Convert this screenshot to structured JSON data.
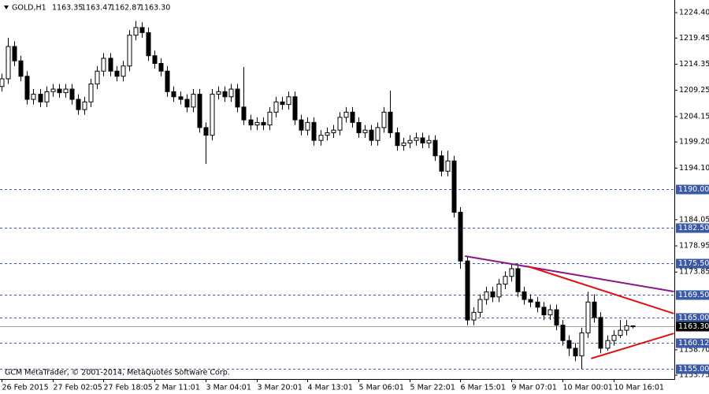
{
  "chart_data": {
    "type": "candlestick",
    "symbol": "GOLD,H1",
    "ohlc_labels": [
      "1163.35",
      "1163.47",
      "1162.87",
      "1163.30"
    ],
    "footer": "GCM MetaTrader, © 2001-2014, MetaQuotes Software Corp.",
    "categories": [
      "26 Feb 2015",
      null,
      null,
      null,
      null,
      null,
      null,
      null,
      "27 Feb 02:05",
      null,
      null,
      null,
      null,
      null,
      null,
      null,
      "27 Feb 18:05",
      null,
      null,
      null,
      null,
      null,
      null,
      null,
      "2 Mar 11:01",
      null,
      null,
      null,
      null,
      null,
      null,
      null,
      "3 Mar 04:01",
      null,
      null,
      null,
      null,
      null,
      null,
      null,
      "3 Mar 20:01",
      null,
      null,
      null,
      null,
      null,
      null,
      null,
      "4 Mar 13:01",
      null,
      null,
      null,
      null,
      null,
      null,
      null,
      "5 Mar 06:01",
      null,
      null,
      null,
      null,
      null,
      null,
      null,
      "5 Mar 22:01",
      null,
      null,
      null,
      null,
      null,
      null,
      null,
      "6 Mar 15:01",
      null,
      null,
      null,
      null,
      null,
      null,
      null,
      "9 Mar 07:01",
      null,
      null,
      null,
      null,
      null,
      null,
      null,
      "10 Mar 00:01",
      null,
      null,
      null,
      null,
      null,
      null,
      null,
      "10 Mar 16:01",
      null,
      null,
      null
    ],
    "open": [
      1210,
      1211.5,
      1217.8,
      1215,
      1212,
      1207.5,
      1208.5,
      1207,
      1209,
      1209.5,
      1208.8,
      1209.5,
      1207.5,
      1205.5,
      1207,
      1210.5,
      1213,
      1215.5,
      1213,
      1212,
      1214,
      1220,
      1221.5,
      1220.5,
      1216,
      1214.5,
      1213,
      1209,
      1208,
      1207.5,
      1206,
      1208.5,
      1202,
      1200.5,
      1208.5,
      1209,
      1208,
      1209.5,
      1206,
      1203.5,
      1202.5,
      1203,
      1202.5,
      1205,
      1207,
      1206.5,
      1208,
      1203.5,
      1201.5,
      1203,
      1199.5,
      1200.5,
      1201,
      1201.5,
      1204,
      1205,
      1203,
      1201,
      1201.5,
      1199.5,
      1202,
      1205,
      1201,
      1198.5,
      1199,
      1199.5,
      1200,
      1199,
      1199.5,
      1196.5,
      1193.5,
      1195.5,
      1185.5,
      1176,
      1164.5,
      1166,
      1168.5,
      1170,
      1169,
      1171.5,
      1173,
      1174.5,
      1170,
      1168.5,
      1168,
      1167,
      1165.5,
      1166.5,
      1163.5,
      1160.5,
      1159,
      1157.5,
      1162,
      1168,
      1165,
      1159,
      1160.5,
      1161.5,
      1162.5,
      1163.35
    ],
    "high": [
      1212.5,
      1219.5,
      1218.8,
      1216,
      1213,
      1209.5,
      1209.5,
      1210,
      1210.5,
      1210.5,
      1210.5,
      1210.5,
      1208.5,
      1208,
      1211.5,
      1214,
      1216.5,
      1216.5,
      1214,
      1215,
      1221,
      1222.8,
      1222.5,
      1221.5,
      1217,
      1215.5,
      1214,
      1210,
      1209,
      1208.5,
      1209.5,
      1209.5,
      1203,
      1209.5,
      1210,
      1210,
      1210.5,
      1210.5,
      1213.8,
      1204.5,
      1204,
      1204,
      1206,
      1208,
      1208,
      1209,
      1209,
      1204.5,
      1204,
      1204,
      1201.5,
      1202,
      1202.5,
      1205,
      1206,
      1206,
      1204,
      1202.5,
      1202.5,
      1203,
      1206,
      1209.2,
      1202,
      1200,
      1200.5,
      1201,
      1201,
      1200.5,
      1200.5,
      1197.5,
      1197.5,
      1196.5,
      1186.5,
      1177,
      1167,
      1169.5,
      1171,
      1171,
      1172.5,
      1174,
      1175.5,
      1175.5,
      1171,
      1169.5,
      1169,
      1168,
      1167.5,
      1167.5,
      1164.5,
      1161.5,
      1160,
      1163,
      1170,
      1169.5,
      1166,
      1161.5,
      1162.5,
      1164.5,
      1164.5,
      1163.47
    ],
    "low": [
      1209,
      1210.5,
      1214,
      1211,
      1206.5,
      1206.5,
      1206,
      1206,
      1208,
      1207.8,
      1207.8,
      1206.5,
      1204.5,
      1204.5,
      1206,
      1209.5,
      1212,
      1212,
      1211,
      1211,
      1213,
      1219,
      1219.5,
      1215,
      1213.5,
      1212,
      1208,
      1207,
      1206.5,
      1205,
      1205,
      1201,
      1194.9,
      1199.5,
      1207.5,
      1207,
      1207,
      1205,
      1202.5,
      1201.5,
      1201.5,
      1201.5,
      1201.5,
      1204,
      1205.5,
      1205.5,
      1202.5,
      1200.5,
      1200.5,
      1198.5,
      1198.5,
      1199.5,
      1200,
      1200.5,
      1203,
      1202,
      1200,
      1200,
      1198.5,
      1198.5,
      1201,
      1200,
      1197.5,
      1197.5,
      1198,
      1198.5,
      1198,
      1198,
      1195.5,
      1192.5,
      1192.5,
      1184.5,
      1174.5,
      1163.5,
      1163.5,
      1165,
      1167.5,
      1168,
      1168,
      1170.5,
      1172,
      1169,
      1167.5,
      1167,
      1166,
      1164.5,
      1164.5,
      1162.5,
      1159.5,
      1157.5,
      1156.5,
      1155,
      1161,
      1164,
      1158,
      1158.5,
      1159.5,
      1161,
      1161.5,
      1162.87
    ],
    "close": [
      1211.5,
      1217.8,
      1215,
      1212,
      1207.5,
      1208.5,
      1207,
      1209,
      1209.5,
      1208.8,
      1209.5,
      1207.5,
      1205.5,
      1207,
      1210.5,
      1213,
      1215.5,
      1213,
      1212,
      1214,
      1220,
      1221.5,
      1220.5,
      1216,
      1214.5,
      1213,
      1209,
      1208,
      1207.5,
      1206,
      1208.5,
      1202,
      1200.5,
      1208.5,
      1209,
      1208,
      1209.5,
      1206,
      1203.5,
      1202.5,
      1203,
      1202.5,
      1205,
      1207,
      1206.5,
      1208,
      1203.5,
      1201.5,
      1203,
      1199.5,
      1200.5,
      1201,
      1201.5,
      1204,
      1205,
      1203,
      1201,
      1201.5,
      1199.5,
      1202,
      1205,
      1201,
      1198.5,
      1199,
      1199.5,
      1200,
      1199,
      1199.5,
      1196.5,
      1193.5,
      1195.5,
      1185.5,
      1176,
      1164.5,
      1166,
      1168.5,
      1170,
      1169,
      1171.5,
      1173,
      1174.5,
      1170,
      1168.5,
      1168,
      1167,
      1165.5,
      1166.5,
      1163.5,
      1160.5,
      1159,
      1157.5,
      1162,
      1168,
      1165,
      1159,
      1160.5,
      1161.5,
      1162.5,
      1163.35,
      1163.3
    ],
    "up_color": "#ffffff",
    "down_color": "#000000",
    "ylim": [
      1153.0,
      1226.86
    ],
    "yticks": [
      {
        "value": 1224.4,
        "label": "1224.40"
      },
      1219.45,
      1214.35,
      1209.25,
      1204.15,
      {
        "value": 1199.2,
        "label": "1199.20"
      },
      {
        "value": 1194.1,
        "label": "1194.10"
      },
      1184.05,
      1178.95,
      1173.85,
      {
        "value": 1158.7,
        "label": "1158.70"
      },
      1153.75
    ],
    "levels": [
      {
        "value": 1190,
        "label": "1190.00"
      },
      {
        "value": 1182.5,
        "label": "1182.50"
      },
      {
        "value": 1175.5,
        "label": "1175.50"
      },
      {
        "value": 1169.5,
        "label": "1169.50"
      },
      {
        "value": 1165,
        "label": "1165.00"
      },
      {
        "value": 1160.12,
        "label": "1160.12"
      },
      {
        "value": 1155,
        "label": "1155.00"
      }
    ],
    "level_color": "#3a5aa8",
    "price_line_color": "#a0a0a0",
    "trendlines": [
      {
        "color": "#8b168b",
        "x": [
          72.7,
          105.5
        ],
        "y": [
          1176.96,
          1170.05
        ]
      },
      {
        "color": "#e01010",
        "x": [
          82.6,
          105.5
        ],
        "y": [
          1174.96,
          1165.75
        ]
      },
      {
        "color": "#e01010",
        "x": [
          92.5,
          105.5
        ],
        "y": [
          1157.0,
          1161.9
        ]
      }
    ]
  }
}
